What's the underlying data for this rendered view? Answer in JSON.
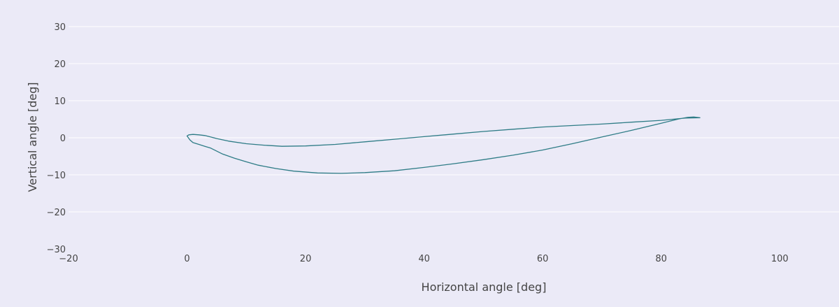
{
  "chart_data": {
    "type": "line",
    "title": "",
    "xlabel": "Horizontal angle [deg]",
    "ylabel": "Vertical angle [deg]",
    "xlim": [
      -20,
      110
    ],
    "ylim": [
      -30,
      30
    ],
    "x_ticks": [
      -20,
      0,
      20,
      40,
      60,
      80,
      100
    ],
    "y_ticks": [
      -30,
      -20,
      -10,
      0,
      10,
      20,
      30
    ],
    "x_tick_labels": [
      "−20",
      "0",
      "20",
      "40",
      "60",
      "80",
      "100"
    ],
    "y_tick_labels": [
      "−30",
      "−20",
      "−10",
      "0",
      "10",
      "20",
      "30"
    ],
    "grid": true,
    "colors": {
      "background": "#ebeaf7",
      "line": "#2e7c86",
      "grid": "#ffffff"
    },
    "series": [
      {
        "x": [
          86.6,
          85.5,
          84.5,
          83.0,
          80,
          75,
          70,
          65,
          60,
          55,
          50,
          45,
          40,
          35,
          30,
          26,
          22,
          18,
          15,
          12,
          10,
          8,
          6,
          5,
          4,
          3,
          2,
          1,
          0.5,
          0,
          0.3,
          1,
          2,
          3,
          4,
          5,
          7,
          10,
          13,
          16,
          20,
          25,
          30,
          35,
          40,
          45,
          50,
          55,
          60,
          65,
          70,
          75,
          80,
          84,
          86.6
        ],
        "y": [
          5.4,
          5.6,
          5.5,
          5.1,
          3.9,
          2.0,
          0.2,
          -1.6,
          -3.3,
          -4.7,
          -5.9,
          -7.0,
          -8.0,
          -8.9,
          -9.4,
          -9.6,
          -9.5,
          -9.0,
          -8.3,
          -7.4,
          -6.5,
          -5.5,
          -4.4,
          -3.6,
          -2.8,
          -2.3,
          -1.8,
          -1.3,
          -0.6,
          0.5,
          0.8,
          0.9,
          0.8,
          0.6,
          0.2,
          -0.2,
          -0.9,
          -1.6,
          -2.0,
          -2.3,
          -2.2,
          -1.8,
          -1.1,
          -0.4,
          0.3,
          1.0,
          1.7,
          2.3,
          2.9,
          3.3,
          3.7,
          4.2,
          4.7,
          5.3,
          5.4
        ]
      }
    ]
  }
}
